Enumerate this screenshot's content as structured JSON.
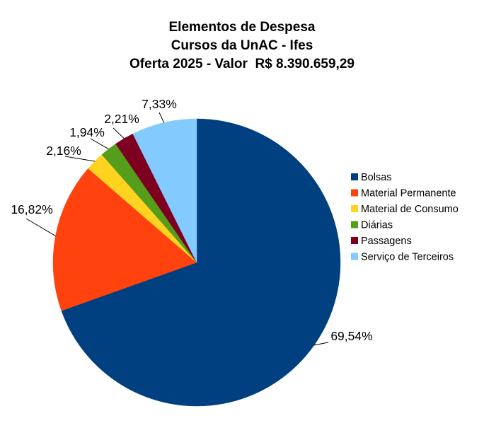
{
  "chart_data": {
    "type": "pie",
    "title": [
      "Elementos de Despesa",
      "Cursos da UnAC - Ifes",
      "Oferta 2025 - Valor  R$ 8.390.659,29"
    ],
    "legend_position": "right",
    "slices": [
      {
        "name": "Bolsas",
        "value": 69.54,
        "label": "69,54%",
        "color": "#004080"
      },
      {
        "name": "Material Permanente",
        "value": 16.82,
        "label": "16,82%",
        "color": "#FF420E"
      },
      {
        "name": "Material de Consumo",
        "value": 2.16,
        "label": "2,16%",
        "color": "#FFD320"
      },
      {
        "name": "Diárias",
        "value": 1.94,
        "label": "1,94%",
        "color": "#579D1C"
      },
      {
        "name": "Passagens",
        "value": 2.21,
        "label": "2,21%",
        "color": "#7E0021"
      },
      {
        "name": "Serviço de Terceiros",
        "value": 7.33,
        "label": "7,33%",
        "color": "#83CAFF"
      }
    ]
  }
}
